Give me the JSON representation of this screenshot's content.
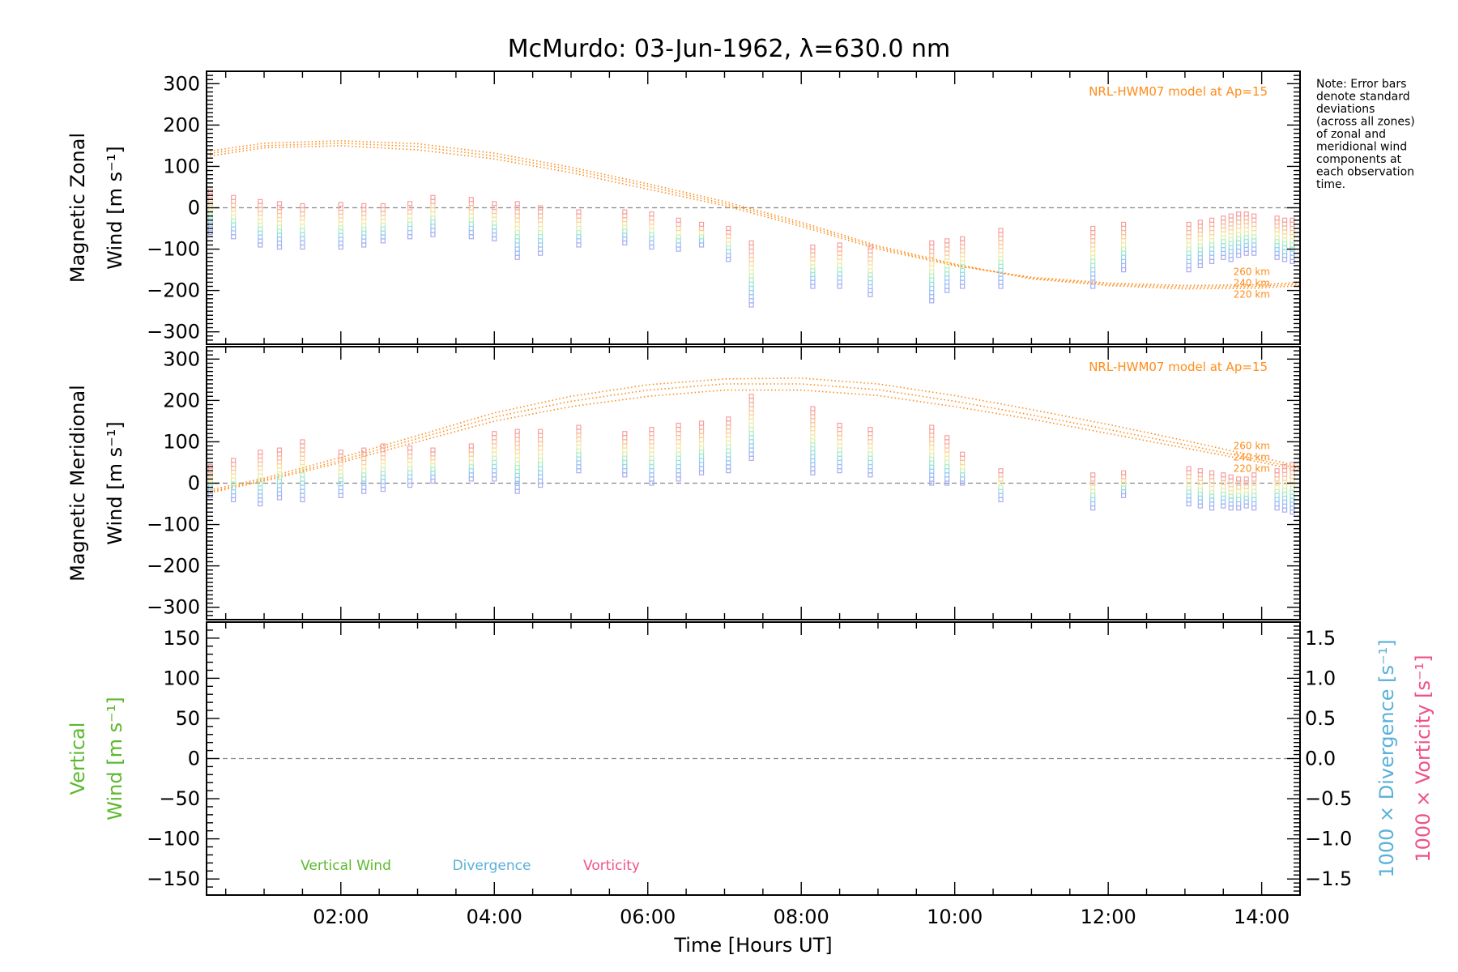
{
  "title": "McMurdo: 03-Jun-1962, λ=630.0 nm",
  "note": [
    "Note: Error bars",
    "denote standard",
    "deviations",
    "(across all zones)",
    "of zonal and",
    "meridional wind",
    "components at",
    "each observation",
    "time."
  ],
  "colors": {
    "model": "#ff8c1a",
    "vertical": "#5cb82e",
    "divergence": "#5ab0d8",
    "vorticity": "#f0508a",
    "zero_line": "#888888"
  },
  "chart_data": [
    {
      "type": "scatter",
      "panel": "zonal",
      "ylabel_line1": "Magnetic Zonal",
      "ylabel_line2": "Wind [m s⁻¹]",
      "ylim": [
        -330,
        330
      ],
      "yticks": [
        300,
        200,
        100,
        0,
        -100,
        -200,
        -300
      ],
      "xlim": [
        0.25,
        14.5
      ],
      "model_label": "NRL-HWM07 model at Ap=15",
      "altitude_labels": [
        "260 km",
        "240 km",
        "220 km"
      ],
      "model": [
        {
          "name": "260 km",
          "x": [
            0.25,
            1,
            2,
            3,
            4,
            5,
            6,
            7,
            8,
            9,
            10,
            11,
            12,
            13,
            14,
            14.5
          ],
          "y": [
            124,
            145,
            150,
            140,
            118,
            85,
            45,
            5,
            -45,
            -100,
            -140,
            -168,
            -182,
            -188,
            -186,
            -180
          ]
        },
        {
          "name": "240 km",
          "x": [
            0.25,
            1,
            2,
            3,
            4,
            5,
            6,
            7,
            8,
            9,
            10,
            11,
            12,
            13,
            14,
            14.5
          ],
          "y": [
            130,
            150,
            156,
            148,
            125,
            92,
            52,
            10,
            -40,
            -96,
            -138,
            -170,
            -185,
            -192,
            -190,
            -184
          ]
        },
        {
          "name": "220 km",
          "x": [
            0.25,
            1,
            2,
            3,
            4,
            5,
            6,
            7,
            8,
            9,
            10,
            11,
            12,
            13,
            14,
            14.5
          ],
          "y": [
            136,
            156,
            162,
            155,
            132,
            98,
            58,
            15,
            -35,
            -92,
            -136,
            -172,
            -188,
            -196,
            -194,
            -188
          ]
        }
      ],
      "observations": {
        "x": [
          0.3,
          0.6,
          0.95,
          1.2,
          1.5,
          2.0,
          2.3,
          2.55,
          2.9,
          3.2,
          3.7,
          4.0,
          4.3,
          4.6,
          5.1,
          5.7,
          6.05,
          6.4,
          6.7,
          7.05,
          7.35,
          8.15,
          8.5,
          8.9,
          9.7,
          9.9,
          10.1,
          10.6,
          11.8,
          12.2,
          13.05,
          13.2,
          13.35,
          13.5,
          13.6,
          13.7,
          13.8,
          13.9,
          14.2,
          14.3,
          14.4
        ],
        "y_min": [
          -60,
          -70,
          -90,
          -95,
          -95,
          -95,
          -90,
          -80,
          -70,
          -65,
          -70,
          -75,
          -120,
          -110,
          -90,
          -85,
          -95,
          -100,
          -90,
          -125,
          -235,
          -190,
          -190,
          -210,
          -225,
          -200,
          -190,
          -190,
          -190,
          -150,
          -150,
          -140,
          -130,
          -120,
          -125,
          -115,
          -110,
          -110,
          -120,
          -125,
          -130
        ],
        "y_max": [
          40,
          25,
          15,
          10,
          5,
          8,
          5,
          5,
          10,
          25,
          20,
          10,
          10,
          0,
          -10,
          -10,
          -15,
          -30,
          -40,
          -50,
          -85,
          -95,
          -90,
          -95,
          -85,
          -80,
          -75,
          -55,
          -50,
          -40,
          -40,
          -35,
          -30,
          -25,
          -20,
          -15,
          -15,
          -20,
          -25,
          -30,
          -30
        ]
      }
    },
    {
      "type": "scatter",
      "panel": "meridional",
      "ylabel_line1": "Magnetic Meridional",
      "ylabel_line2": "Wind [m s⁻¹]",
      "ylim": [
        -330,
        330
      ],
      "yticks": [
        300,
        200,
        100,
        0,
        -100,
        -200,
        -300
      ],
      "xlim": [
        0.25,
        14.5
      ],
      "model_label": "NRL-HWM07 model at Ap=15",
      "altitude_labels": [
        "260 km",
        "240 km",
        "220 km"
      ],
      "model": [
        {
          "name": "260 km",
          "x": [
            0.25,
            1,
            2,
            3,
            4,
            5,
            6,
            7,
            8,
            9,
            10,
            11,
            12,
            13,
            14,
            14.5
          ],
          "y": [
            -25,
            5,
            50,
            100,
            150,
            185,
            210,
            225,
            225,
            212,
            185,
            155,
            120,
            85,
            50,
            30
          ]
        },
        {
          "name": "240 km",
          "x": [
            0.25,
            1,
            2,
            3,
            4,
            5,
            6,
            7,
            8,
            9,
            10,
            11,
            12,
            13,
            14,
            14.5
          ],
          "y": [
            -22,
            8,
            55,
            108,
            160,
            198,
            225,
            240,
            240,
            226,
            198,
            165,
            130,
            93,
            55,
            35
          ]
        },
        {
          "name": "220 km",
          "x": [
            0.25,
            1,
            2,
            3,
            4,
            5,
            6,
            7,
            8,
            9,
            10,
            11,
            12,
            13,
            14,
            14.5
          ],
          "y": [
            -18,
            12,
            62,
            115,
            170,
            210,
            238,
            252,
            254,
            240,
            212,
            178,
            142,
            103,
            62,
            40
          ]
        }
      ],
      "observations": {
        "x": [
          0.3,
          0.6,
          0.95,
          1.2,
          1.5,
          2.0,
          2.3,
          2.55,
          2.9,
          3.2,
          3.7,
          4.0,
          4.3,
          4.6,
          5.1,
          5.7,
          6.05,
          6.4,
          6.7,
          7.05,
          7.35,
          8.15,
          8.5,
          8.9,
          9.7,
          9.9,
          10.1,
          10.6,
          11.8,
          12.2,
          13.05,
          13.2,
          13.35,
          13.5,
          13.6,
          13.7,
          13.8,
          13.9,
          14.2,
          14.3,
          14.4
        ],
        "y_min": [
          -30,
          -40,
          -50,
          -35,
          -40,
          -30,
          -20,
          -15,
          -5,
          5,
          10,
          10,
          -20,
          -5,
          30,
          20,
          0,
          10,
          25,
          30,
          60,
          25,
          30,
          20,
          0,
          0,
          0,
          -40,
          -60,
          -30,
          -50,
          -55,
          -60,
          -55,
          -60,
          -60,
          -55,
          -60,
          -60,
          -65,
          -70
        ],
        "y_max": [
          40,
          55,
          75,
          80,
          100,
          75,
          80,
          90,
          85,
          80,
          90,
          120,
          125,
          125,
          135,
          120,
          130,
          140,
          145,
          155,
          210,
          180,
          140,
          130,
          135,
          110,
          70,
          30,
          20,
          25,
          35,
          30,
          25,
          20,
          15,
          10,
          10,
          20,
          30,
          40,
          45
        ]
      }
    },
    {
      "type": "line",
      "panel": "vertical",
      "ylabel_line1": "Vertical",
      "ylabel_line2": "Wind [m s⁻¹]",
      "ylim": [
        -170,
        170
      ],
      "yticks": [
        150,
        100,
        50,
        0,
        -50,
        -100,
        -150
      ],
      "y2_ticks": [
        "1.5",
        "1.0",
        "0.5",
        "0.0",
        "−0.5",
        "−1.0",
        "−1.5"
      ],
      "y2_values": [
        1.5,
        1.0,
        0.5,
        0.0,
        -0.5,
        -1.0,
        -1.5
      ],
      "y2_label_divergence": "1000 × Divergence [s⁻¹]",
      "y2_label_vorticity": "1000 × Vorticity [s⁻¹]",
      "legend": [
        "Vertical Wind",
        "Divergence",
        "Vorticity"
      ],
      "xlabel": "Time [Hours UT]",
      "xticks": [
        2,
        4,
        6,
        8,
        10,
        12,
        14
      ],
      "xtick_labels": [
        "02:00",
        "04:00",
        "06:00",
        "08:00",
        "10:00",
        "12:00",
        "14:00"
      ],
      "xlim": [
        0.25,
        14.5
      ]
    }
  ]
}
